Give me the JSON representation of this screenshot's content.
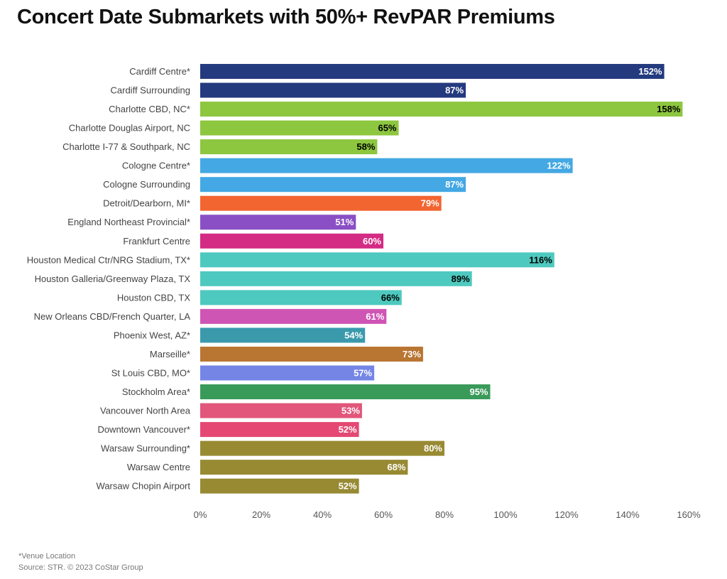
{
  "header": {
    "title": "Concert Date Submarkets with 50%+ RevPAR Premiums"
  },
  "footer": {
    "note": "*Venue Location",
    "source": "Source: STR. © 2023 CoStar Group"
  },
  "chart_data": {
    "type": "bar",
    "orientation": "horizontal",
    "title": "Concert Date Submarkets with 50%+ RevPAR Premiums",
    "xlabel": "",
    "ylabel": "",
    "xlim": [
      0,
      160
    ],
    "x_ticks": [
      0,
      20,
      40,
      60,
      80,
      100,
      120,
      140,
      160
    ],
    "tick_suffix": "%",
    "grid": false,
    "categories": [
      "Cardiff Centre*",
      "Cardiff Surrounding",
      "Charlotte CBD, NC*",
      "Charlotte Douglas Airport, NC",
      "Charlotte I-77 & Southpark, NC",
      "Cologne Centre*",
      "Cologne Surrounding",
      "Detroit/Dearborn, MI*",
      "England Northeast Provincial*",
      "Frankfurt Centre",
      "Houston Medical Ctr/NRG Stadium, TX*",
      "Houston Galleria/Greenway Plaza, TX",
      "Houston CBD, TX",
      "New Orleans CBD/French Quarter, LA",
      "Phoenix West, AZ*",
      "Marseille*",
      "St Louis CBD, MO*",
      "Stockholm Area*",
      "Vancouver North Area",
      "Downtown Vancouver*",
      "Warsaw Surrounding*",
      "Warsaw Centre",
      "Warsaw Chopin Airport"
    ],
    "values": [
      152,
      87,
      158,
      65,
      58,
      122,
      87,
      79,
      51,
      60,
      116,
      89,
      66,
      61,
      54,
      73,
      57,
      95,
      53,
      52,
      80,
      68,
      52
    ],
    "value_labels": [
      "152%",
      "87%",
      "158%",
      "65%",
      "58%",
      "122%",
      "87%",
      "79%",
      "51%",
      "60%",
      "116%",
      "89%",
      "66%",
      "61%",
      "54%",
      "73%",
      "57%",
      "95%",
      "53%",
      "52%",
      "80%",
      "68%",
      "52%"
    ],
    "colors": [
      "#243a7e",
      "#243a7e",
      "#8dc63f",
      "#8dc63f",
      "#8dc63f",
      "#43a8e3",
      "#43a8e3",
      "#f26531",
      "#8a4fc4",
      "#d42b84",
      "#4ec9bf",
      "#4ec9bf",
      "#4ec9bf",
      "#cf55b5",
      "#3a9aac",
      "#b97532",
      "#7585e6",
      "#3a9a5a",
      "#e1567a",
      "#e44873",
      "#978a33",
      "#978a33",
      "#978a33"
    ],
    "label_colors": [
      "#ffffff",
      "#ffffff",
      "#000000",
      "#000000",
      "#000000",
      "#ffffff",
      "#ffffff",
      "#ffffff",
      "#ffffff",
      "#ffffff",
      "#000000",
      "#000000",
      "#000000",
      "#ffffff",
      "#ffffff",
      "#ffffff",
      "#ffffff",
      "#ffffff",
      "#ffffff",
      "#ffffff",
      "#ffffff",
      "#ffffff",
      "#ffffff"
    ]
  }
}
